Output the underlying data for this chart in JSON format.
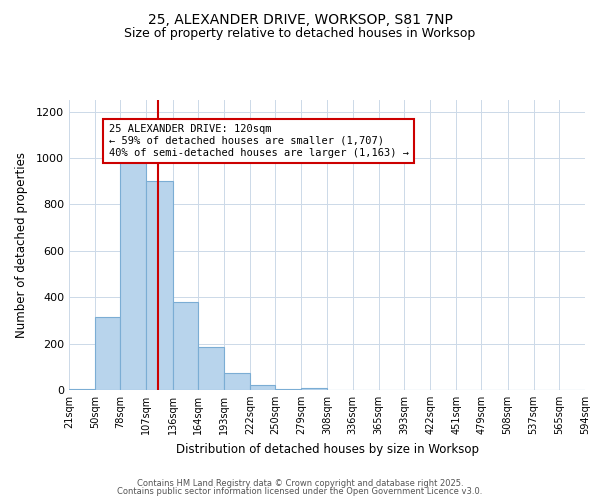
{
  "title_line1": "25, ALEXANDER DRIVE, WORKSOP, S81 7NP",
  "title_line2": "Size of property relative to detached houses in Worksop",
  "xlabel": "Distribution of detached houses by size in Worksop",
  "ylabel": "Number of detached properties",
  "bar_color": "#b8d4ec",
  "bar_edge_color": "#7badd4",
  "vline_x": 120,
  "vline_color": "#cc0000",
  "annotation_title": "25 ALEXANDER DRIVE: 120sqm",
  "annotation_line2": "← 59% of detached houses are smaller (1,707)",
  "annotation_line3": "40% of semi-detached houses are larger (1,163) →",
  "annotation_box_edge": "#cc0000",
  "footer_line1": "Contains HM Land Registry data © Crown copyright and database right 2025.",
  "footer_line2": "Contains public sector information licensed under the Open Government Licence v3.0.",
  "bin_edges": [
    21,
    50,
    78,
    107,
    136,
    164,
    193,
    222,
    250,
    279,
    308,
    336,
    365,
    393,
    422,
    451,
    479,
    508,
    537,
    565,
    594
  ],
  "bin_heights": [
    5,
    315,
    1000,
    900,
    380,
    185,
    75,
    20,
    5,
    10,
    0,
    0,
    0,
    0,
    0,
    0,
    0,
    0,
    0,
    0
  ],
  "ylim": [
    0,
    1250
  ],
  "yticks": [
    0,
    200,
    400,
    600,
    800,
    1000,
    1200
  ],
  "background_color": "#ffffff",
  "grid_color": "#ccd9e8"
}
